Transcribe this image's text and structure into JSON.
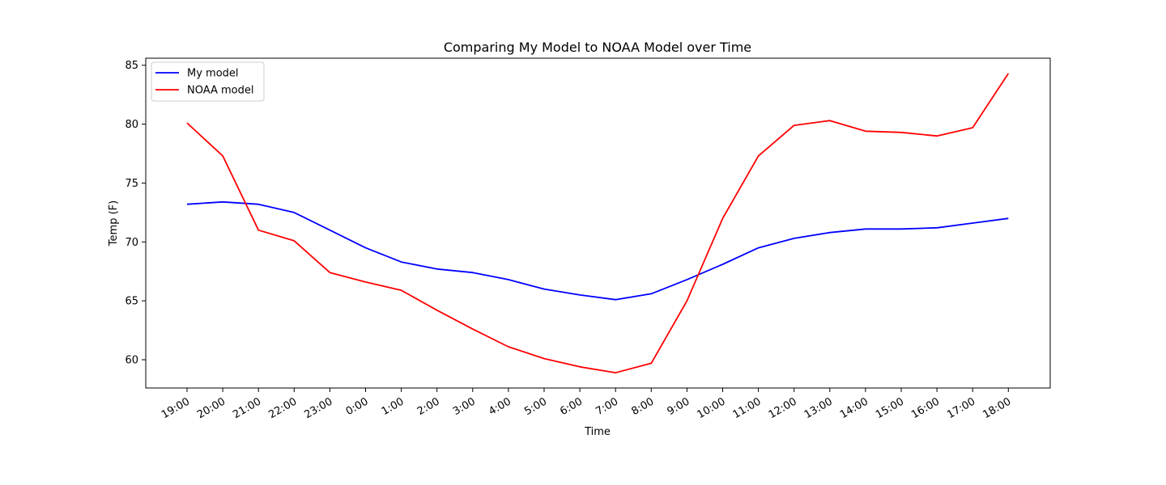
{
  "chart_data": {
    "type": "line",
    "title": "Comparing My Model to NOAA Model over Time",
    "xlabel": "Time",
    "ylabel": "Temp (F)",
    "categories": [
      "19:00",
      "20:00",
      "21:00",
      "22:00",
      "23:00",
      "0:00",
      "1:00",
      "2:00",
      "3:00",
      "4:00",
      "5:00",
      "6:00",
      "7:00",
      "8:00",
      "9:00",
      "10:00",
      "11:00",
      "12:00",
      "13:00",
      "14:00",
      "15:00",
      "16:00",
      "17:00",
      "18:00"
    ],
    "ylim": [
      57.6,
      85.6
    ],
    "yticks": [
      60,
      65,
      70,
      75,
      80,
      85
    ],
    "grid": false,
    "legend_position": "top-left",
    "series": [
      {
        "name": "My model",
        "color": "#0000ff",
        "values": [
          73.2,
          73.4,
          73.2,
          72.5,
          71.0,
          69.5,
          68.3,
          67.7,
          67.4,
          66.8,
          66.0,
          65.5,
          65.1,
          65.6,
          66.8,
          68.1,
          69.5,
          70.3,
          70.8,
          71.1,
          71.1,
          71.2,
          71.6,
          72.0
        ]
      },
      {
        "name": "NOAA model",
        "color": "#ff0000",
        "values": [
          80.1,
          77.3,
          71.0,
          70.1,
          67.4,
          66.6,
          65.9,
          64.2,
          62.6,
          61.1,
          60.1,
          59.4,
          58.9,
          59.7,
          65.0,
          72.0,
          77.3,
          79.9,
          80.3,
          79.4,
          79.3,
          79.0,
          79.7,
          84.3
        ]
      }
    ]
  }
}
